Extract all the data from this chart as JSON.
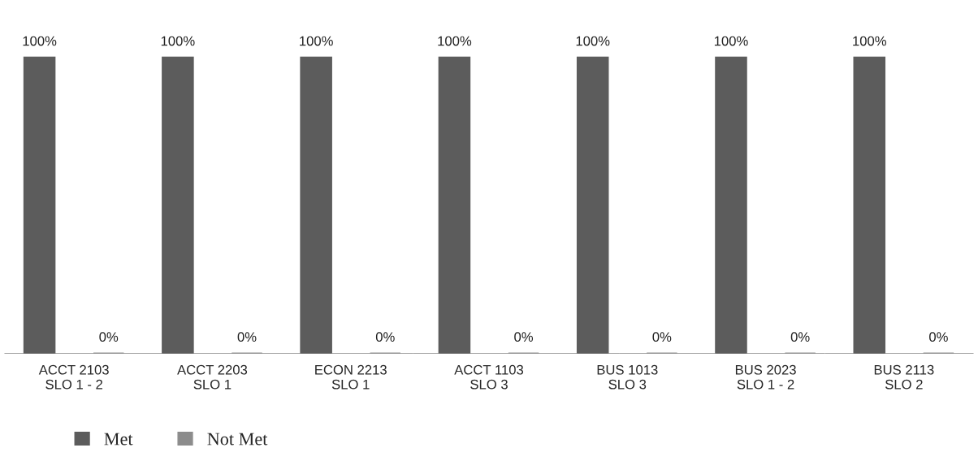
{
  "chart_data": {
    "type": "bar",
    "categories": [
      "ACCT 2103\nSLO 1 - 2",
      "ACCT 2203\nSLO 1",
      "ECON 2213\nSLO 1",
      "ACCT 1103\nSLO 3",
      "BUS 1013\nSLO 3",
      "BUS 2023\nSLO 1 - 2",
      "BUS 2113\nSLO 2"
    ],
    "series": [
      {
        "name": "Met",
        "color": "#5c5c5c",
        "values": [
          100,
          100,
          100,
          100,
          100,
          100,
          100
        ],
        "value_labels": [
          "100%",
          "100%",
          "100%",
          "100%",
          "100%",
          "100%",
          "100%"
        ]
      },
      {
        "name": "Not Met",
        "color": "#8c8c8c",
        "values": [
          0,
          0,
          0,
          0,
          0,
          0,
          0
        ],
        "value_labels": [
          "0%",
          "0%",
          "0%",
          "0%",
          "0%",
          "0%",
          "0%"
        ]
      }
    ],
    "legend": "bottom left"
  }
}
